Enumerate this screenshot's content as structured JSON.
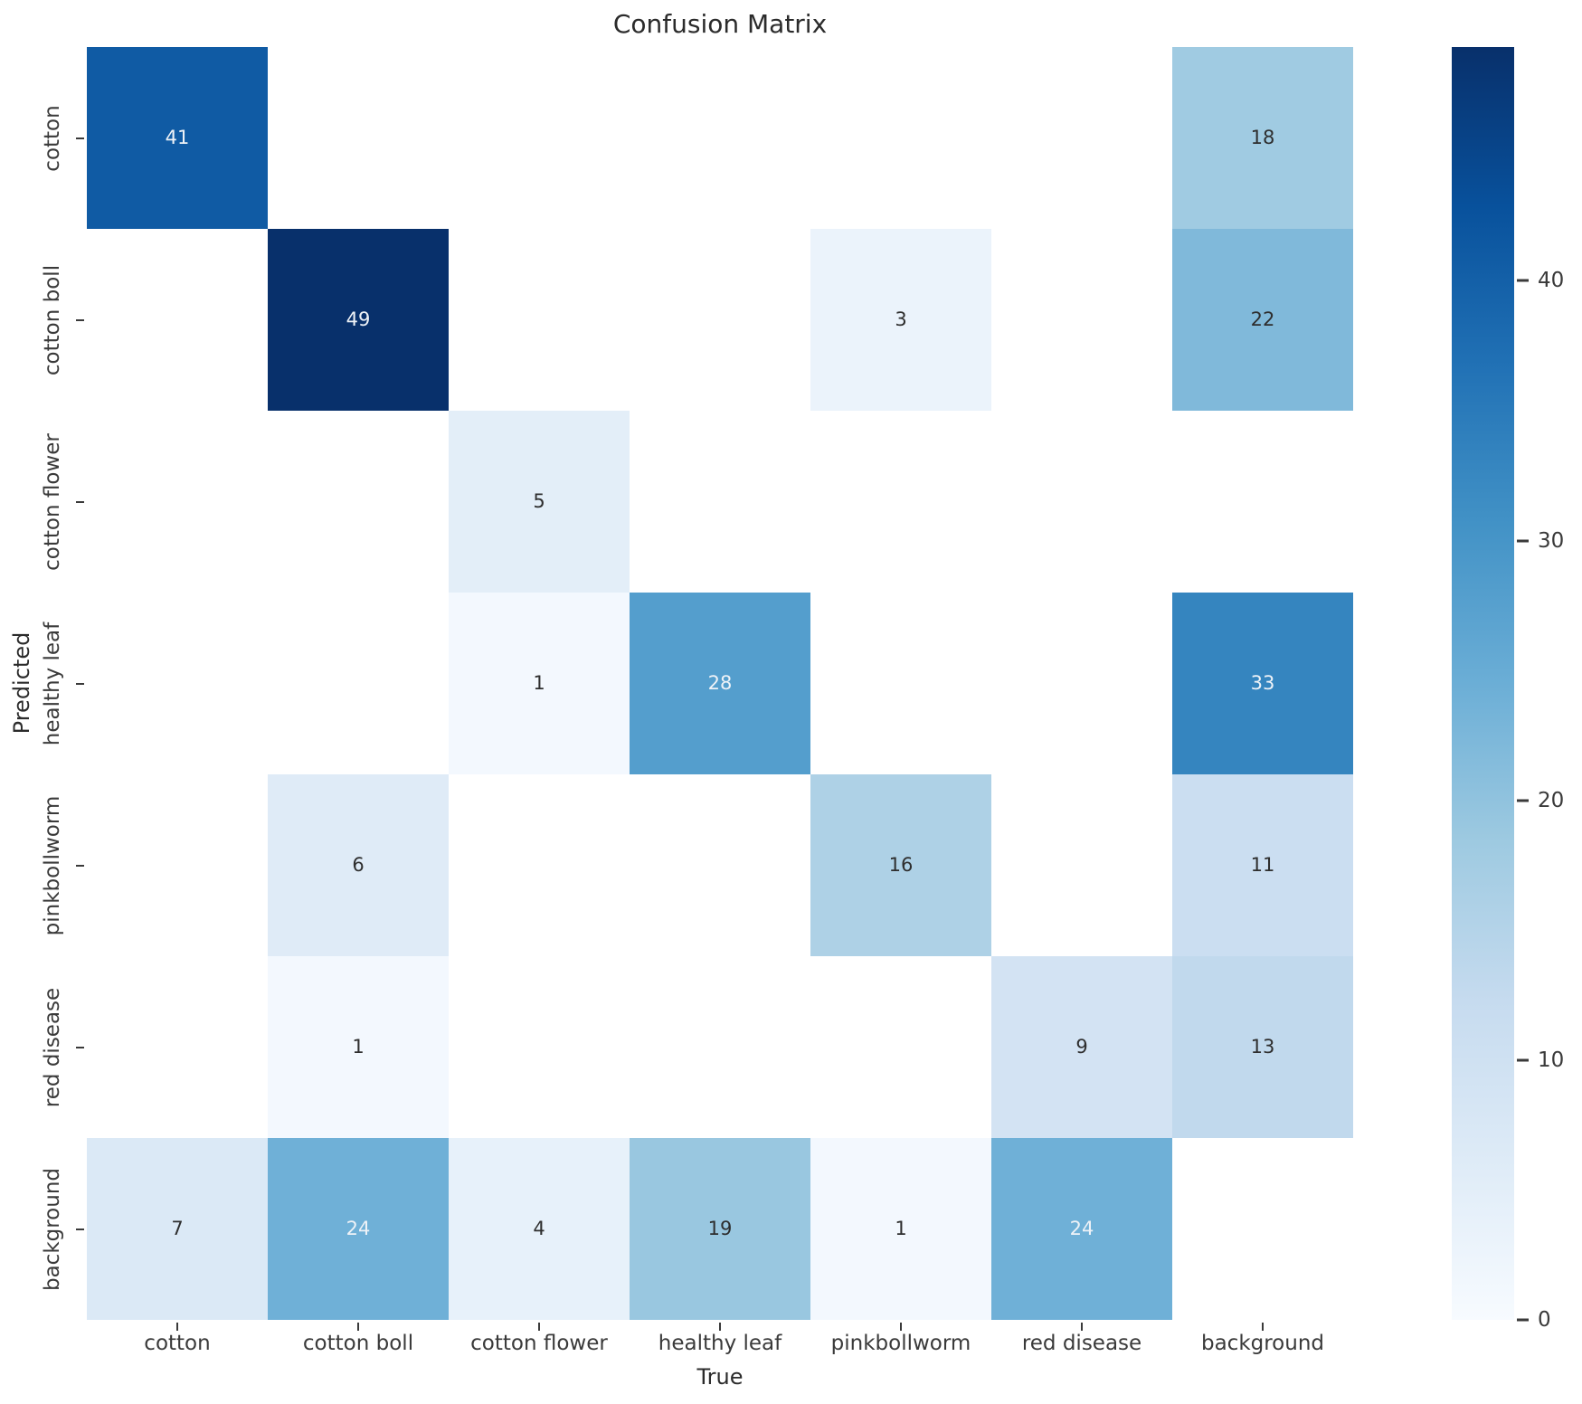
{
  "chart_data": {
    "type": "heatmap",
    "title": "Confusion Matrix",
    "xlabel": "True",
    "ylabel": "Predicted",
    "x_categories": [
      "cotton",
      "cotton boll",
      "cotton flower",
      "healthy leaf",
      "pinkbollworm",
      "red disease",
      "background"
    ],
    "y_categories": [
      "cotton",
      "cotton boll",
      "cotton flower",
      "healthy leaf",
      "pinkbollworm",
      "red disease",
      "background"
    ],
    "matrix": [
      [
        41,
        null,
        null,
        null,
        null,
        null,
        18
      ],
      [
        null,
        49,
        null,
        null,
        3,
        null,
        22
      ],
      [
        null,
        null,
        5,
        null,
        null,
        null,
        null
      ],
      [
        null,
        null,
        1,
        28,
        null,
        null,
        33
      ],
      [
        null,
        6,
        null,
        null,
        16,
        null,
        11
      ],
      [
        null,
        1,
        null,
        null,
        null,
        9,
        13
      ],
      [
        7,
        24,
        4,
        19,
        1,
        24,
        null
      ]
    ],
    "vmin": 0,
    "vmax": 49,
    "grid": false,
    "legend_position": "right-colorbar",
    "colorbar_ticks": [
      0,
      10,
      20,
      30,
      40
    ],
    "colormap": {
      "name": "Blues",
      "stops": [
        {
          "pos": 0.0,
          "color": "#f7fbff"
        },
        {
          "pos": 0.125,
          "color": "#deebf7"
        },
        {
          "pos": 0.25,
          "color": "#c6dbef"
        },
        {
          "pos": 0.375,
          "color": "#9ecae1"
        },
        {
          "pos": 0.5,
          "color": "#6baed6"
        },
        {
          "pos": 0.625,
          "color": "#4292c6"
        },
        {
          "pos": 0.75,
          "color": "#2171b5"
        },
        {
          "pos": 0.875,
          "color": "#08519c"
        },
        {
          "pos": 1.0,
          "color": "#08306b"
        }
      ]
    },
    "empty_cell_color": "#ffffff",
    "annot_dark_color": "#2e2e2e",
    "annot_light_color": "#eef2f7",
    "axis_text_color": "#3a3a3a"
  }
}
